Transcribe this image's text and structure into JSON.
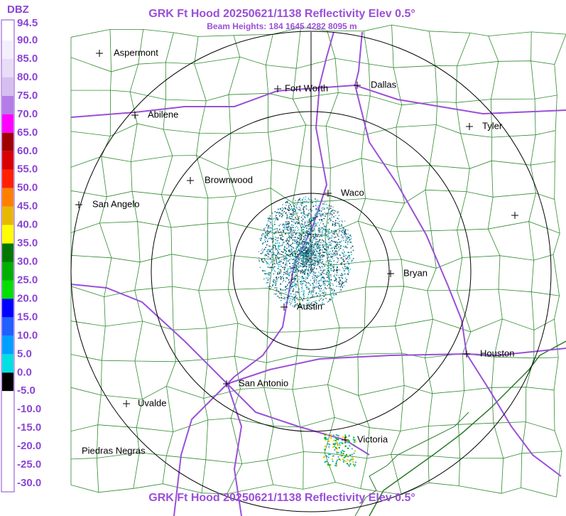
{
  "header": {
    "title": "GRK Ft Hood 20250621/1138 Reflectivity Elev 0.5°",
    "subtitle": "Beam Heights: 184 1645 4282 8095 m"
  },
  "footer": {
    "title": "GRK Ft Hood 20250621/1138 Reflectivity Elev 0.5°"
  },
  "legend": {
    "unit": "DBZ",
    "labels": [
      "94.5",
      "90.0",
      "85.0",
      "80.0",
      "75.0",
      "70.0",
      "65.0",
      "60.0",
      "55.0",
      "50.0",
      "45.0",
      "40.0",
      "35.0",
      "30.0",
      "25.0",
      "20.0",
      "15.0",
      "10.0",
      "5.0",
      "0.0",
      "-5.0",
      "-10.0",
      "-15.0",
      "-20.0",
      "-25.0",
      "-30.0"
    ]
  },
  "map": {
    "cities": [
      {
        "label": "Aspermont"
      },
      {
        "label": "Fort Worth"
      },
      {
        "label": "Dallas"
      },
      {
        "label": "Abilene"
      },
      {
        "label": "Tyler"
      },
      {
        "label": "Brownwood"
      },
      {
        "label": "Waco"
      },
      {
        "label": "San Angelo"
      },
      {
        "label": "Bryan"
      },
      {
        "label": "Austin"
      },
      {
        "label": "Houston"
      },
      {
        "label": "San Antonio"
      },
      {
        "label": "Uvalde"
      },
      {
        "label": "Victoria"
      },
      {
        "label": "Piedras Negras"
      }
    ]
  }
}
